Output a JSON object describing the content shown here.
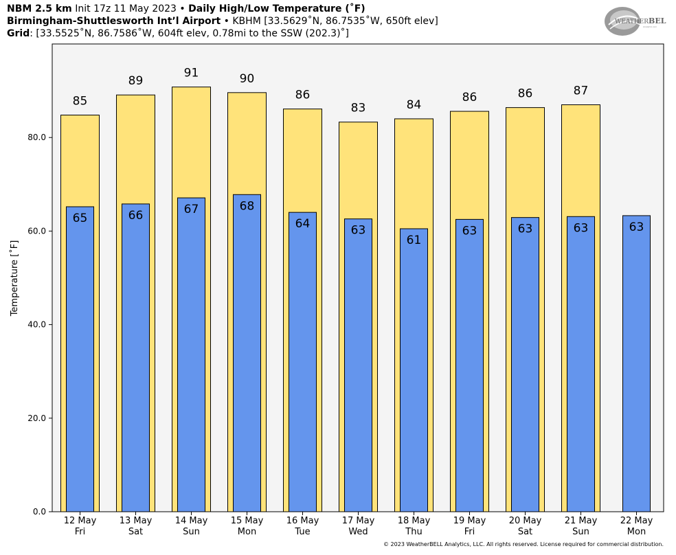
{
  "header": {
    "line1_model": "NBM 2.5 km",
    "line1_init": " Init 17z 11 May 2023 • ",
    "line1_product": "Daily High/Low Temperature (˚F)",
    "line2_station": "Birmingham-Shuttlesworth Intʼl Airport",
    "line2_info": " • KBHM [33.5629˚N, 86.7535˚W, 650ft elev]",
    "line3_grid": "Grid",
    "line3_info": ": [33.5525˚N, 86.7586˚W, 604ft elev, 0.78mi to the SSW (202.3)˚]"
  },
  "logo": {
    "text_weather": "WEATHER",
    "text_bell": "BELL",
    "sub": "Analytics LLC"
  },
  "copyright": "© 2023 WeatherBELL Analytics, LLC. All rights reserved. License required for commercial distribution.",
  "colors": {
    "high": "#FFE37A",
    "low": "#6495ED",
    "plot_bg": "#F4F4F4"
  },
  "chart_data": {
    "type": "bar",
    "ylabel": "Temperature [˚F]",
    "ylim": [
      0,
      100
    ],
    "yticks": [
      0,
      20,
      40,
      60,
      80
    ],
    "ytick_labels": [
      "0.0",
      "20.0",
      "40.0",
      "60.0",
      "80.0"
    ],
    "categories": [
      "12 May",
      "13 May",
      "14 May",
      "15 May",
      "16 May",
      "17 May",
      "18 May",
      "19 May",
      "20 May",
      "21 May",
      "22 May"
    ],
    "weekdays": [
      "Fri",
      "Sat",
      "Sun",
      "Mon",
      "Tue",
      "Wed",
      "Thu",
      "Fri",
      "Sat",
      "Sun",
      "Mon"
    ],
    "series": [
      {
        "name": "High",
        "values": [
          84.8,
          89.1,
          90.8,
          89.6,
          86.1,
          83.3,
          84.0,
          85.6,
          86.4,
          87.0,
          null
        ],
        "labels": [
          "85",
          "89",
          "91",
          "90",
          "86",
          "83",
          "84",
          "86",
          "86",
          "87",
          ""
        ]
      },
      {
        "name": "Low",
        "values": [
          65.2,
          65.8,
          67.1,
          67.8,
          64.0,
          62.6,
          60.5,
          62.5,
          62.9,
          63.1,
          63.3
        ],
        "labels": [
          "65",
          "66",
          "67",
          "68",
          "64",
          "63",
          "61",
          "63",
          "63",
          "63",
          "63"
        ]
      }
    ],
    "grid": false,
    "legend": "none"
  }
}
